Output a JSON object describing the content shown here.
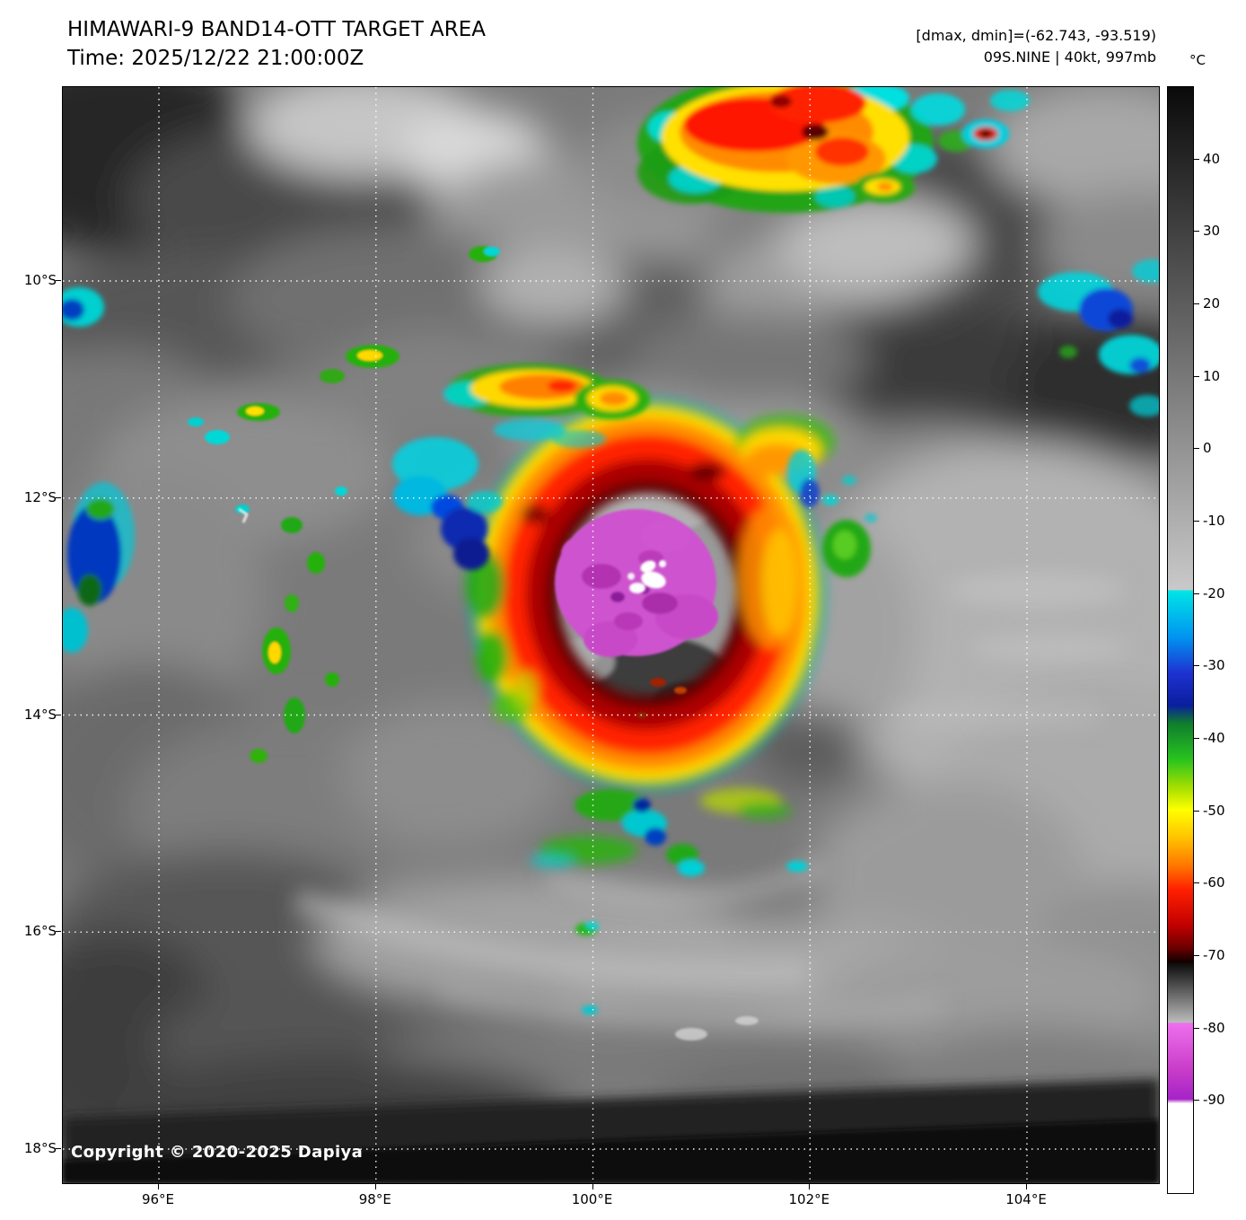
{
  "header": {
    "title": "HIMAWARI-9 BAND14-OTT TARGET AREA",
    "time": "Time: 2025/12/22 21:00:00Z",
    "dmax_dmin": "[dmax, dmin]=(-62.743, -93.519)",
    "storm": "09S.NINE | 40kt, 997mb"
  },
  "map": {
    "lat_labels": [
      "10°S",
      "12°S",
      "14°S",
      "16°S",
      "18°S"
    ],
    "lon_labels": [
      "96°E",
      "98°E",
      "100°E",
      "102°E",
      "104°E"
    ],
    "copyright": "Copyright © 2020-2025 Dapiya"
  },
  "colorbar": {
    "unit": "°C",
    "tick_labels": [
      "40",
      "30",
      "20",
      "10",
      "0",
      "-10",
      "-20",
      "-30",
      "-40",
      "-50",
      "-60",
      "-70",
      "-80",
      "-90"
    ],
    "tick_values": [
      40,
      30,
      20,
      10,
      0,
      -10,
      -20,
      -30,
      -40,
      -50,
      -60,
      -70,
      -80,
      -90
    ],
    "scale_top_temp": 50,
    "scale_bottom_temp": -103,
    "stops": [
      {
        "t": 50,
        "c": "#0a0a0a"
      },
      {
        "t": -19.6,
        "c": "#c9c9c9"
      },
      {
        "t": -19.5,
        "c": "#00e6e6"
      },
      {
        "t": -26,
        "c": "#0096f0"
      },
      {
        "t": -31,
        "c": "#1e32d2"
      },
      {
        "t": -35.5,
        "c": "#0a1e9e"
      },
      {
        "t": -38,
        "c": "#0f7d2d"
      },
      {
        "t": -43,
        "c": "#28c31e"
      },
      {
        "t": -47,
        "c": "#a8e000"
      },
      {
        "t": -50,
        "c": "#ffff00"
      },
      {
        "t": -54,
        "c": "#ffc000"
      },
      {
        "t": -58,
        "c": "#ff7000"
      },
      {
        "t": -61,
        "c": "#ff2000"
      },
      {
        "t": -66,
        "c": "#c00000"
      },
      {
        "t": -69,
        "c": "#6e0000"
      },
      {
        "t": -71,
        "c": "#140000"
      },
      {
        "t": -71.6,
        "c": "#141414"
      },
      {
        "t": -79.4,
        "c": "#bcbcbc"
      },
      {
        "t": -79.5,
        "c": "#ee6fee"
      },
      {
        "t": -86,
        "c": "#c83cc8"
      },
      {
        "t": -90,
        "c": "#a623c8"
      },
      {
        "t": -90.6,
        "c": "#ffffff"
      },
      {
        "t": -103,
        "c": "#ffffff"
      }
    ]
  }
}
